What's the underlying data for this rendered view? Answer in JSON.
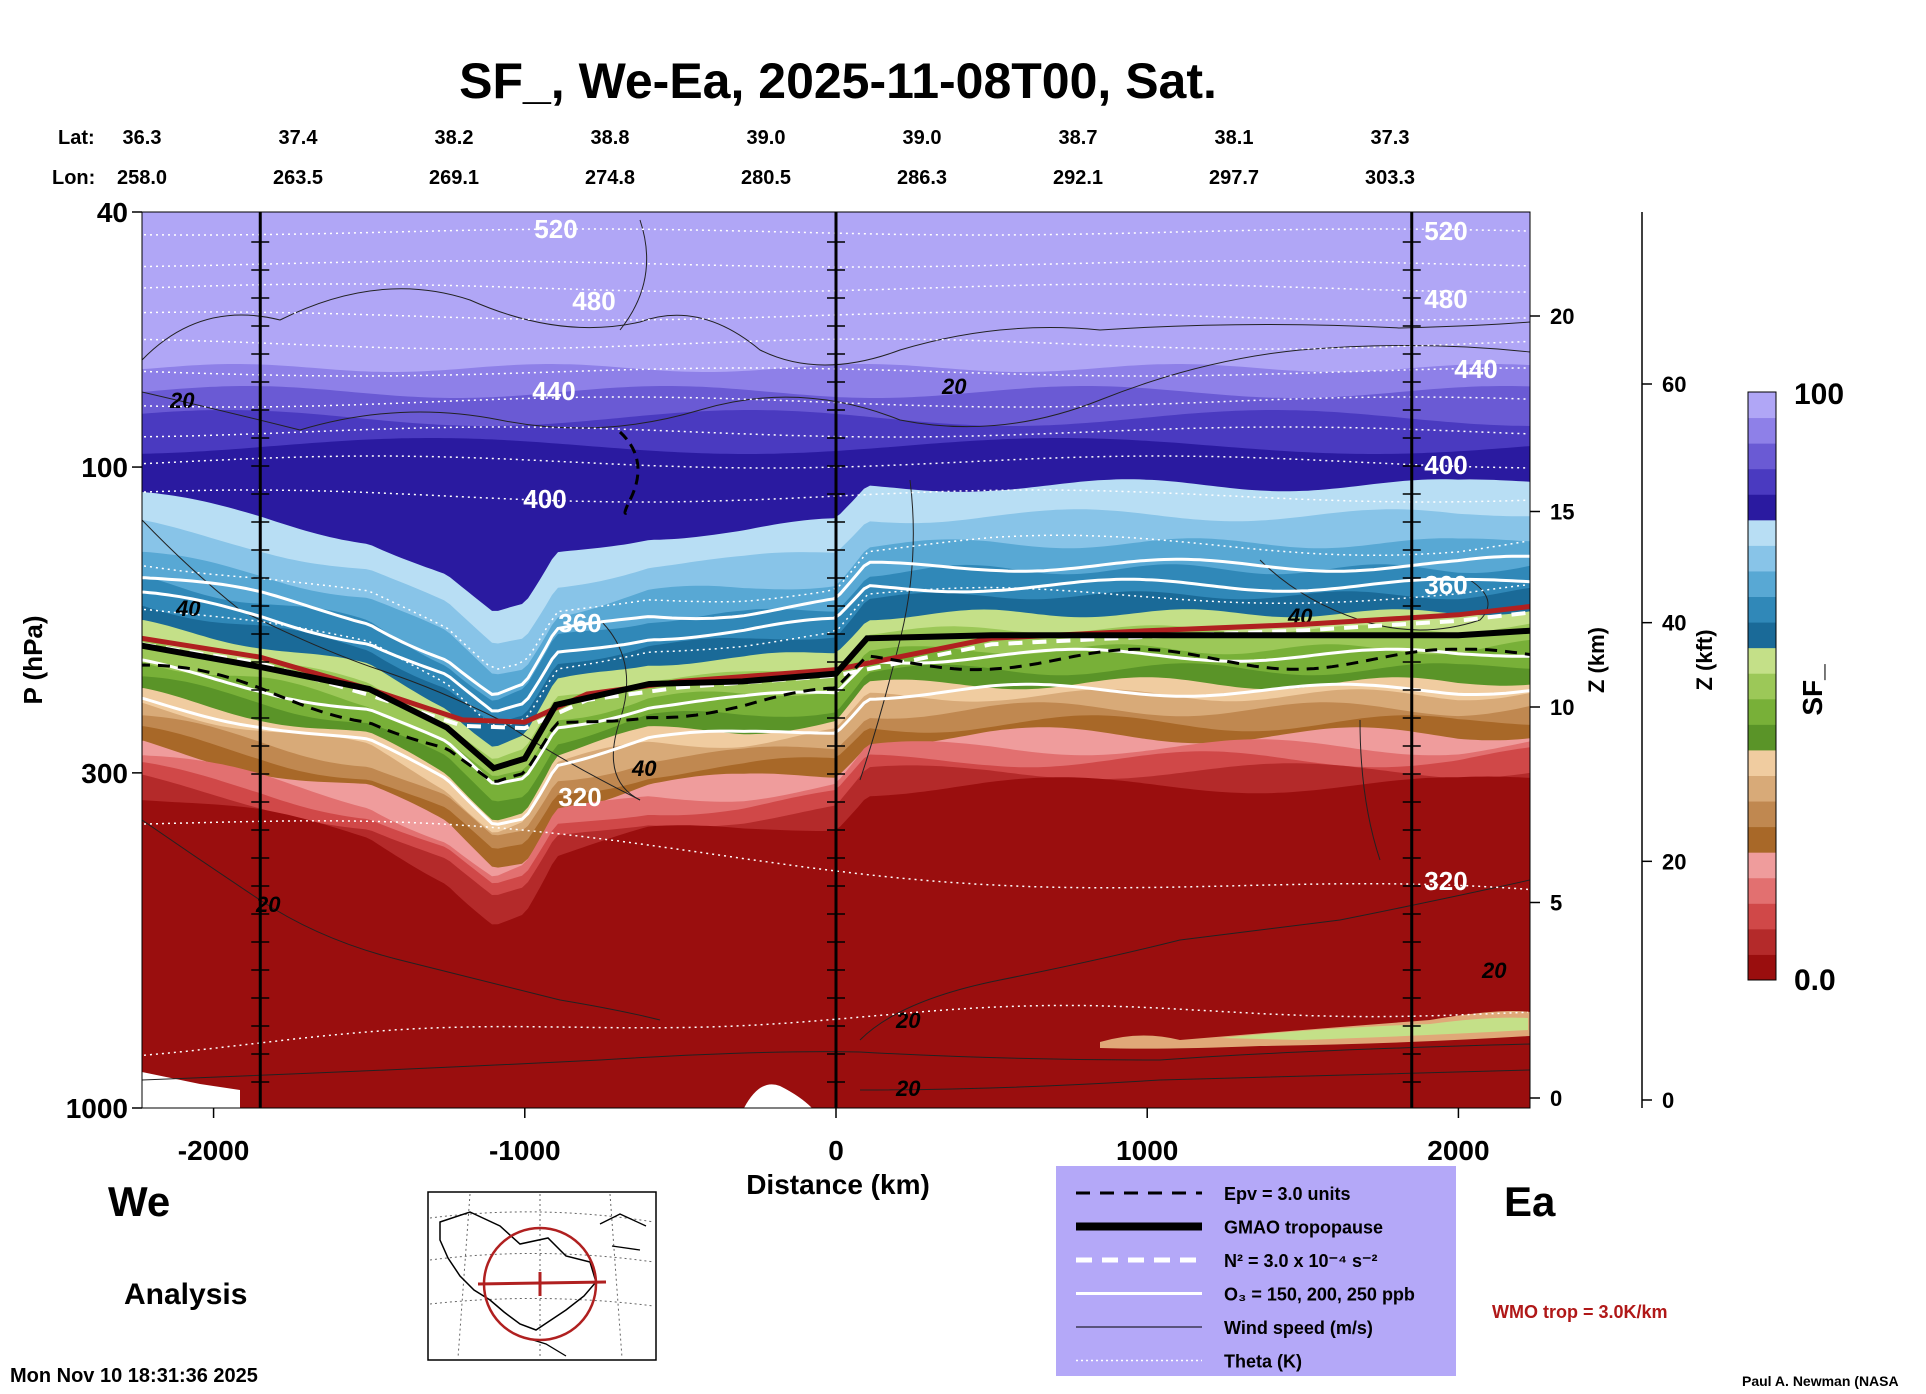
{
  "title": "SF_, We-Ea, 2025-11-08T00, Sat.",
  "header": {
    "lat_label": "Lat:",
    "lon_label": "Lon:",
    "lats": [
      "36.3",
      "37.4",
      "38.2",
      "38.8",
      "39.0",
      "39.0",
      "38.7",
      "38.1",
      "37.3"
    ],
    "lons": [
      "258.0",
      "263.5",
      "269.1",
      "274.8",
      "280.5",
      "286.3",
      "292.1",
      "297.7",
      "303.3"
    ]
  },
  "left_label": "We",
  "right_label": "Ea",
  "analysis_label": "Analysis",
  "timestamp": "Mon Nov 10 18:31:36 2025",
  "credit": "Paul A. Newman (NASA",
  "wmo_label": "WMO trop = 3.0K/km",
  "legend": {
    "items": [
      {
        "style": "dashed-black",
        "label": "Epv = 3.0 units"
      },
      {
        "style": "thick-black",
        "label": "GMAO tropopause"
      },
      {
        "style": "dashed-white",
        "label": "N² = 3.0 x 10⁻⁴ s⁻²"
      },
      {
        "style": "solid-white",
        "label": "O₃ = 150, 200, 250 ppb"
      },
      {
        "style": "thin-black",
        "label": "Wind speed (m/s)"
      },
      {
        "style": "dotted-white",
        "label": "Theta (K)"
      }
    ]
  },
  "colors": {
    "legend_bg": "#b4a8f8",
    "wmo_red": "#b01818",
    "tropopause_red": "#b02020",
    "stratosphere": "#b0a4f4",
    "troposphere": "#9c1010"
  },
  "chart_data": {
    "type": "heatmap",
    "title": "SF_, We-Ea, 2025-11-08T00, Sat.",
    "xlabel": "Distance (km)",
    "ylabel": "P (hPa)",
    "xlim": [
      -2230,
      2230
    ],
    "ylim": [
      1000,
      40
    ],
    "y_scale": "log",
    "x_ticks": [
      -2000,
      -1000,
      0,
      1000,
      2000
    ],
    "x_tick_labels": [
      "-2000",
      "-1000",
      "0",
      "1000",
      "2000"
    ],
    "y_ticks": [
      40,
      100,
      300,
      1000
    ],
    "y_tick_labels": [
      "40",
      "100",
      "300",
      "1000"
    ],
    "z_km_axis": {
      "label": "Z (km)",
      "ticks": [
        0,
        5,
        10,
        15,
        20
      ],
      "tick_labels": [
        "0",
        "5",
        "10",
        "15",
        "20"
      ]
    },
    "z_kft_axis": {
      "label": "Z (kft)",
      "ticks": [
        0,
        20,
        40,
        60
      ],
      "tick_labels": [
        "0",
        "20",
        "40",
        "60"
      ]
    },
    "colorbar": {
      "label": "SF_",
      "min_label": "0.0",
      "max_label": "100",
      "colors": [
        "#9a0e0e",
        "#b42a2a",
        "#d04848",
        "#e27070",
        "#ef9c9c",
        "#a86828",
        "#c08850",
        "#d8aa78",
        "#f0cca0",
        "#5a9428",
        "#78b038",
        "#9cc858",
        "#c4e088",
        "#1a6a98",
        "#3088b8",
        "#58a8d4",
        "#88c4e8",
        "#b8def4",
        "#2a1aa0",
        "#4a3ac0",
        "#6a5ad4",
        "#8e80e8",
        "#b0a6f6"
      ]
    },
    "vertical_lines_km": [
      -1850,
      0,
      1850
    ],
    "theta_levels": [
      "320",
      "360",
      "400",
      "440",
      "480",
      "520"
    ],
    "tropopause": {
      "x": [
        -2230,
        -1850,
        -1500,
        -1250,
        -1100,
        -1000,
        -900,
        -600,
        -300,
        0,
        100,
        500,
        1000,
        1500,
        2000,
        2230
      ],
      "p": [
        190,
        205,
        222,
        255,
        295,
        285,
        235,
        218,
        216,
        210,
        185,
        183,
        183,
        183,
        183,
        180
      ]
    },
    "wmo_tropopause": {
      "x": [
        -2230,
        -1850,
        -1500,
        -1200,
        -1000,
        -800,
        -500,
        0,
        500,
        1000,
        1500,
        2000,
        2230
      ],
      "p": [
        185,
        198,
        222,
        248,
        250,
        226,
        216,
        207,
        185,
        180,
        176,
        170,
        165
      ]
    }
  }
}
